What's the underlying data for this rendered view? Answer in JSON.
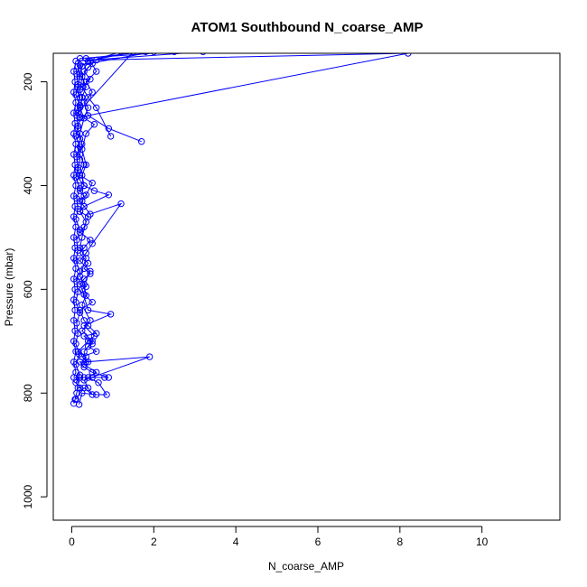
{
  "chart_data": {
    "type": "line",
    "title": "ATOM1 Southbound N_coarse_AMP",
    "xlabel": "N_coarse_AMP",
    "ylabel": "Pressure (mbar)",
    "xlim": [
      -0.45,
      11.9
    ],
    "ylim": [
      1045,
      145
    ],
    "y_reversed": true,
    "x_ticks": [
      0,
      2,
      4,
      6,
      8,
      10
    ],
    "y_ticks": [
      200,
      400,
      600,
      800,
      1000
    ],
    "grid": false,
    "legend": "none",
    "marker": "open-circle",
    "color": "#0000ff",
    "series": [
      {
        "points": [
          [
            0.05,
            820
          ],
          [
            0.08,
            812
          ],
          [
            0.12,
            800
          ],
          [
            0.15,
            790
          ],
          [
            0.2,
            790
          ],
          [
            0.1,
            780
          ],
          [
            0.2,
            770
          ],
          [
            0.3,
            770
          ],
          [
            0.5,
            770
          ],
          [
            0.8,
            770
          ],
          [
            0.9,
            770
          ],
          [
            0.5,
            760
          ],
          [
            0.3,
            750
          ],
          [
            0.2,
            740
          ],
          [
            0.4,
            740
          ],
          [
            0.25,
            730
          ],
          [
            0.6,
            720
          ],
          [
            0.4,
            710
          ],
          [
            0.5,
            705
          ],
          [
            0.45,
            700
          ],
          [
            0.3,
            690
          ],
          [
            0.6,
            685
          ],
          [
            0.4,
            670
          ],
          [
            0.3,
            660
          ],
          [
            0.2,
            640
          ],
          [
            0.5,
            625
          ],
          [
            0.3,
            610
          ],
          [
            0.2,
            590
          ],
          [
            0.3,
            580
          ],
          [
            0.45,
            570
          ],
          [
            0.3,
            560
          ],
          [
            0.4,
            550
          ],
          [
            0.2,
            530
          ],
          [
            0.3,
            520
          ],
          [
            0.45,
            505
          ],
          [
            0.2,
            490
          ],
          [
            0.3,
            480
          ],
          [
            0.4,
            460
          ],
          [
            0.2,
            450
          ],
          [
            0.3,
            440
          ],
          [
            0.2,
            430
          ],
          [
            0.3,
            420
          ],
          [
            0.2,
            410
          ],
          [
            0.3,
            400
          ],
          [
            0.2,
            390
          ],
          [
            0.15,
            370
          ],
          [
            0.2,
            350
          ],
          [
            0.15,
            330
          ],
          [
            0.2,
            310
          ],
          [
            0.15,
            290
          ],
          [
            0.2,
            270
          ],
          [
            0.15,
            250
          ],
          [
            0.2,
            230
          ],
          [
            0.15,
            210
          ],
          [
            0.2,
            190
          ],
          [
            0.15,
            170
          ],
          [
            0.2,
            155
          ],
          [
            2.5,
            142
          ]
        ]
      },
      {
        "points": [
          [
            0.18,
            822
          ],
          [
            0.25,
            800
          ],
          [
            0.6,
            803
          ],
          [
            0.85,
            803
          ],
          [
            0.65,
            780
          ],
          [
            0.4,
            770
          ],
          [
            0.6,
            760
          ],
          [
            0.3,
            745
          ],
          [
            0.35,
            730
          ],
          [
            0.15,
            720
          ],
          [
            0.4,
            700
          ],
          [
            0.55,
            690
          ],
          [
            0.3,
            670
          ],
          [
            0.95,
            648
          ],
          [
            0.4,
            640
          ],
          [
            0.25,
            600
          ],
          [
            0.35,
            595
          ],
          [
            0.2,
            575
          ],
          [
            0.35,
            540
          ],
          [
            0.2,
            520
          ],
          [
            0.25,
            500
          ],
          [
            0.35,
            470
          ],
          [
            0.2,
            450
          ],
          [
            0.25,
            430
          ],
          [
            0.35,
            418
          ],
          [
            0.5,
            395
          ],
          [
            0.2,
            380
          ],
          [
            0.3,
            360
          ],
          [
            0.2,
            340
          ],
          [
            0.25,
            320
          ],
          [
            0.2,
            300
          ],
          [
            0.3,
            270
          ],
          [
            0.2,
            250
          ],
          [
            0.25,
            230
          ],
          [
            0.2,
            215
          ],
          [
            0.3,
            200
          ],
          [
            0.2,
            185
          ],
          [
            0.25,
            170
          ],
          [
            0.4,
            160
          ],
          [
            1.5,
            142
          ]
        ]
      },
      {
        "points": [
          [
            0.1,
            812
          ],
          [
            0.3,
            790
          ],
          [
            0.5,
            803
          ],
          [
            0.4,
            790
          ],
          [
            0.3,
            775
          ],
          [
            1.9,
            730
          ],
          [
            0.35,
            740
          ],
          [
            0.3,
            720
          ],
          [
            0.5,
            700
          ],
          [
            0.25,
            680
          ],
          [
            0.45,
            660
          ],
          [
            0.25,
            630
          ],
          [
            0.35,
            612
          ],
          [
            0.3,
            590
          ],
          [
            0.45,
            565
          ],
          [
            0.2,
            545
          ],
          [
            0.35,
            530
          ],
          [
            0.5,
            512
          ],
          [
            1.2,
            435
          ],
          [
            0.45,
            455
          ],
          [
            0.3,
            440
          ],
          [
            0.9,
            418
          ],
          [
            0.55,
            410
          ],
          [
            0.3,
            400
          ],
          [
            0.25,
            380
          ],
          [
            0.35,
            360
          ],
          [
            0.25,
            330
          ],
          [
            0.35,
            300
          ],
          [
            0.55,
            282
          ],
          [
            0.3,
            270
          ],
          [
            0.4,
            250
          ],
          [
            0.25,
            230
          ],
          [
            0.35,
            210
          ],
          [
            0.25,
            190
          ],
          [
            0.4,
            172
          ],
          [
            0.6,
            158
          ],
          [
            8.2,
            145
          ],
          [
            0.2,
            268
          ],
          [
            0.15,
            260
          ],
          [
            1.5,
            142
          ]
        ]
      },
      {
        "points": [
          [
            0.05,
            770
          ],
          [
            0.1,
            760
          ],
          [
            0.05,
            740
          ],
          [
            0.1,
            720
          ],
          [
            0.05,
            700
          ],
          [
            0.08,
            680
          ],
          [
            0.05,
            660
          ],
          [
            0.08,
            640
          ],
          [
            0.05,
            620
          ],
          [
            0.08,
            600
          ],
          [
            0.05,
            580
          ],
          [
            0.1,
            560
          ],
          [
            0.05,
            540
          ],
          [
            0.08,
            520
          ],
          [
            0.05,
            500
          ],
          [
            0.1,
            480
          ],
          [
            0.05,
            460
          ],
          [
            0.08,
            440
          ],
          [
            0.05,
            420
          ],
          [
            0.1,
            400
          ],
          [
            0.05,
            380
          ],
          [
            0.08,
            360
          ],
          [
            0.05,
            340
          ],
          [
            0.1,
            320
          ],
          [
            0.05,
            300
          ],
          [
            0.08,
            280
          ],
          [
            0.05,
            260
          ],
          [
            0.1,
            240
          ],
          [
            0.05,
            220
          ],
          [
            0.08,
            200
          ],
          [
            0.05,
            180
          ],
          [
            0.1,
            160
          ],
          [
            3.2,
            142
          ]
        ]
      },
      {
        "points": [
          [
            0.12,
            775
          ],
          [
            0.2,
            765
          ],
          [
            0.1,
            745
          ],
          [
            0.18,
            725
          ],
          [
            0.1,
            705
          ],
          [
            0.15,
            685
          ],
          [
            0.12,
            665
          ],
          [
            0.2,
            645
          ],
          [
            0.1,
            625
          ],
          [
            0.15,
            605
          ],
          [
            0.12,
            585
          ],
          [
            0.2,
            565
          ],
          [
            0.1,
            545
          ],
          [
            0.15,
            525
          ],
          [
            0.12,
            505
          ],
          [
            0.2,
            485
          ],
          [
            0.1,
            465
          ],
          [
            0.15,
            445
          ],
          [
            0.12,
            425
          ],
          [
            0.2,
            405
          ],
          [
            0.1,
            385
          ],
          [
            0.15,
            365
          ],
          [
            0.12,
            345
          ],
          [
            0.2,
            325
          ],
          [
            0.1,
            305
          ],
          [
            0.15,
            285
          ],
          [
            0.12,
            265
          ],
          [
            0.2,
            245
          ],
          [
            0.1,
            225
          ],
          [
            0.15,
            205
          ],
          [
            0.12,
            185
          ],
          [
            0.2,
            168
          ],
          [
            2.0,
            142
          ]
        ]
      },
      {
        "points": [
          [
            0.95,
            305
          ],
          [
            0.6,
            250
          ],
          [
            0.4,
            230
          ],
          [
            0.25,
            210
          ],
          [
            0.45,
            195
          ],
          [
            0.3,
            180
          ],
          [
            0.5,
            165
          ],
          [
            0.35,
            155
          ],
          [
            1.8,
            142
          ]
        ]
      },
      {
        "points": [
          [
            1.7,
            315
          ],
          [
            0.9,
            290
          ],
          [
            0.4,
            265
          ],
          [
            0.3,
            240
          ],
          [
            0.5,
            220
          ],
          [
            0.35,
            200
          ],
          [
            0.6,
            180
          ],
          [
            0.45,
            160
          ],
          [
            1.2,
            142
          ]
        ]
      }
    ]
  }
}
